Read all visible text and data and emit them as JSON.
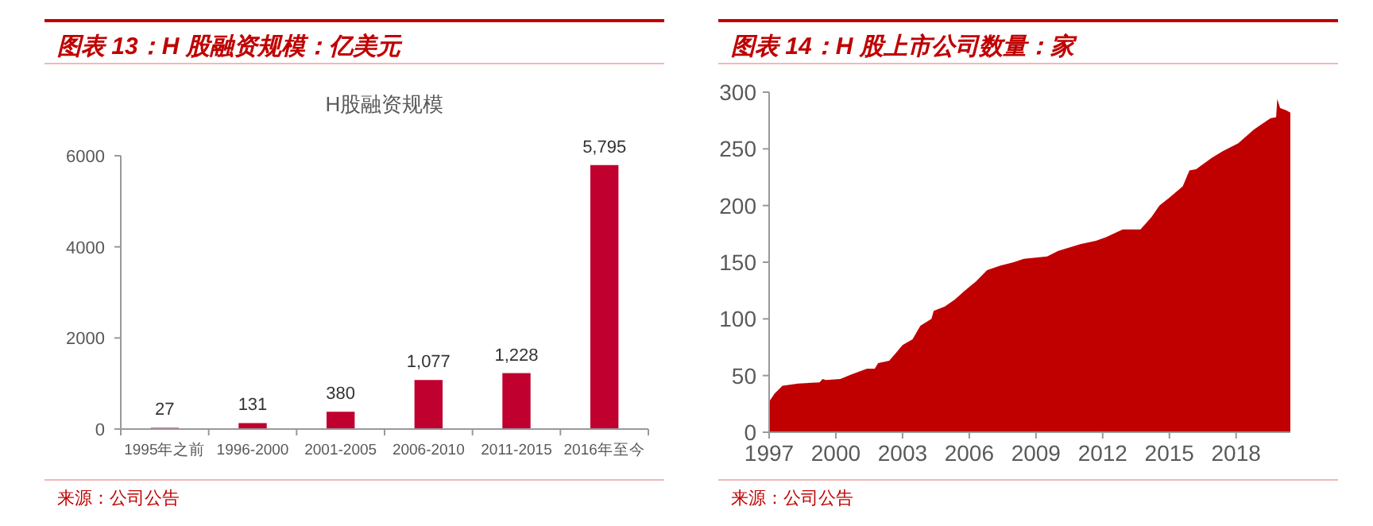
{
  "chart_data": [
    {
      "type": "bar",
      "title": "图表 13：H 股融资规模：亿美元",
      "subtitle": "H股融资规模",
      "categories": [
        "1995年之前",
        "1996-2000",
        "2001-2005",
        "2006-2010",
        "2011-2015",
        "2016年至今"
      ],
      "values": [
        27,
        131,
        380,
        1077,
        1228,
        5795
      ],
      "value_labels": [
        "27",
        "131",
        "380",
        "1,077",
        "1,228",
        "5,795"
      ],
      "color": "#c0002f",
      "ylim": [
        0,
        6000
      ],
      "yticks": [
        0,
        2000,
        4000,
        6000
      ],
      "grid": false,
      "annotations": [
        "来源：公司公告"
      ]
    },
    {
      "type": "area",
      "title": "图表 14：H 股上市公司数量：家",
      "x": [
        1997,
        1997.24,
        1997.6,
        1998.3,
        1999.27,
        1999.4,
        1999.55,
        2000.2,
        2000.7,
        2001.4,
        2001.75,
        2001.9,
        2002.4,
        2002.7,
        2003.0,
        2003.45,
        2003.8,
        2004.3,
        2004.4,
        2004.9,
        2005.35,
        2005.8,
        2006.3,
        2006.8,
        2007.4,
        2008.0,
        2008.45,
        2009.5,
        2010.0,
        2011.0,
        2011.7,
        2012.15,
        2012.9,
        2013.7,
        2014.2,
        2014.55,
        2015.0,
        2015.6,
        2015.9,
        2016.2,
        2016.9,
        2017.4,
        2018.1,
        2018.8,
        2019.55,
        2019.8,
        2019.85,
        2019.98,
        2020.25,
        2020.44
      ],
      "values": [
        27,
        34,
        41,
        43,
        44,
        47,
        46,
        47,
        51,
        56,
        56,
        61,
        63,
        70,
        77,
        82,
        94,
        100,
        107,
        111,
        117,
        125,
        133,
        143,
        147,
        150,
        153,
        155,
        160,
        166,
        169,
        172,
        179,
        179,
        190,
        200,
        207,
        217,
        231,
        232,
        242,
        248,
        255,
        267,
        277,
        278,
        294,
        286,
        284,
        282
      ],
      "color": "#c00000",
      "xlim": [
        1997,
        2020.44
      ],
      "xticks": [
        1997,
        2000,
        2003,
        2006,
        2009,
        2012,
        2015,
        2018
      ],
      "ylim": [
        0,
        300
      ],
      "yticks": [
        0,
        50,
        100,
        150,
        200,
        250,
        300
      ],
      "grid": false,
      "annotations": [
        "来源：公司公告"
      ]
    }
  ]
}
